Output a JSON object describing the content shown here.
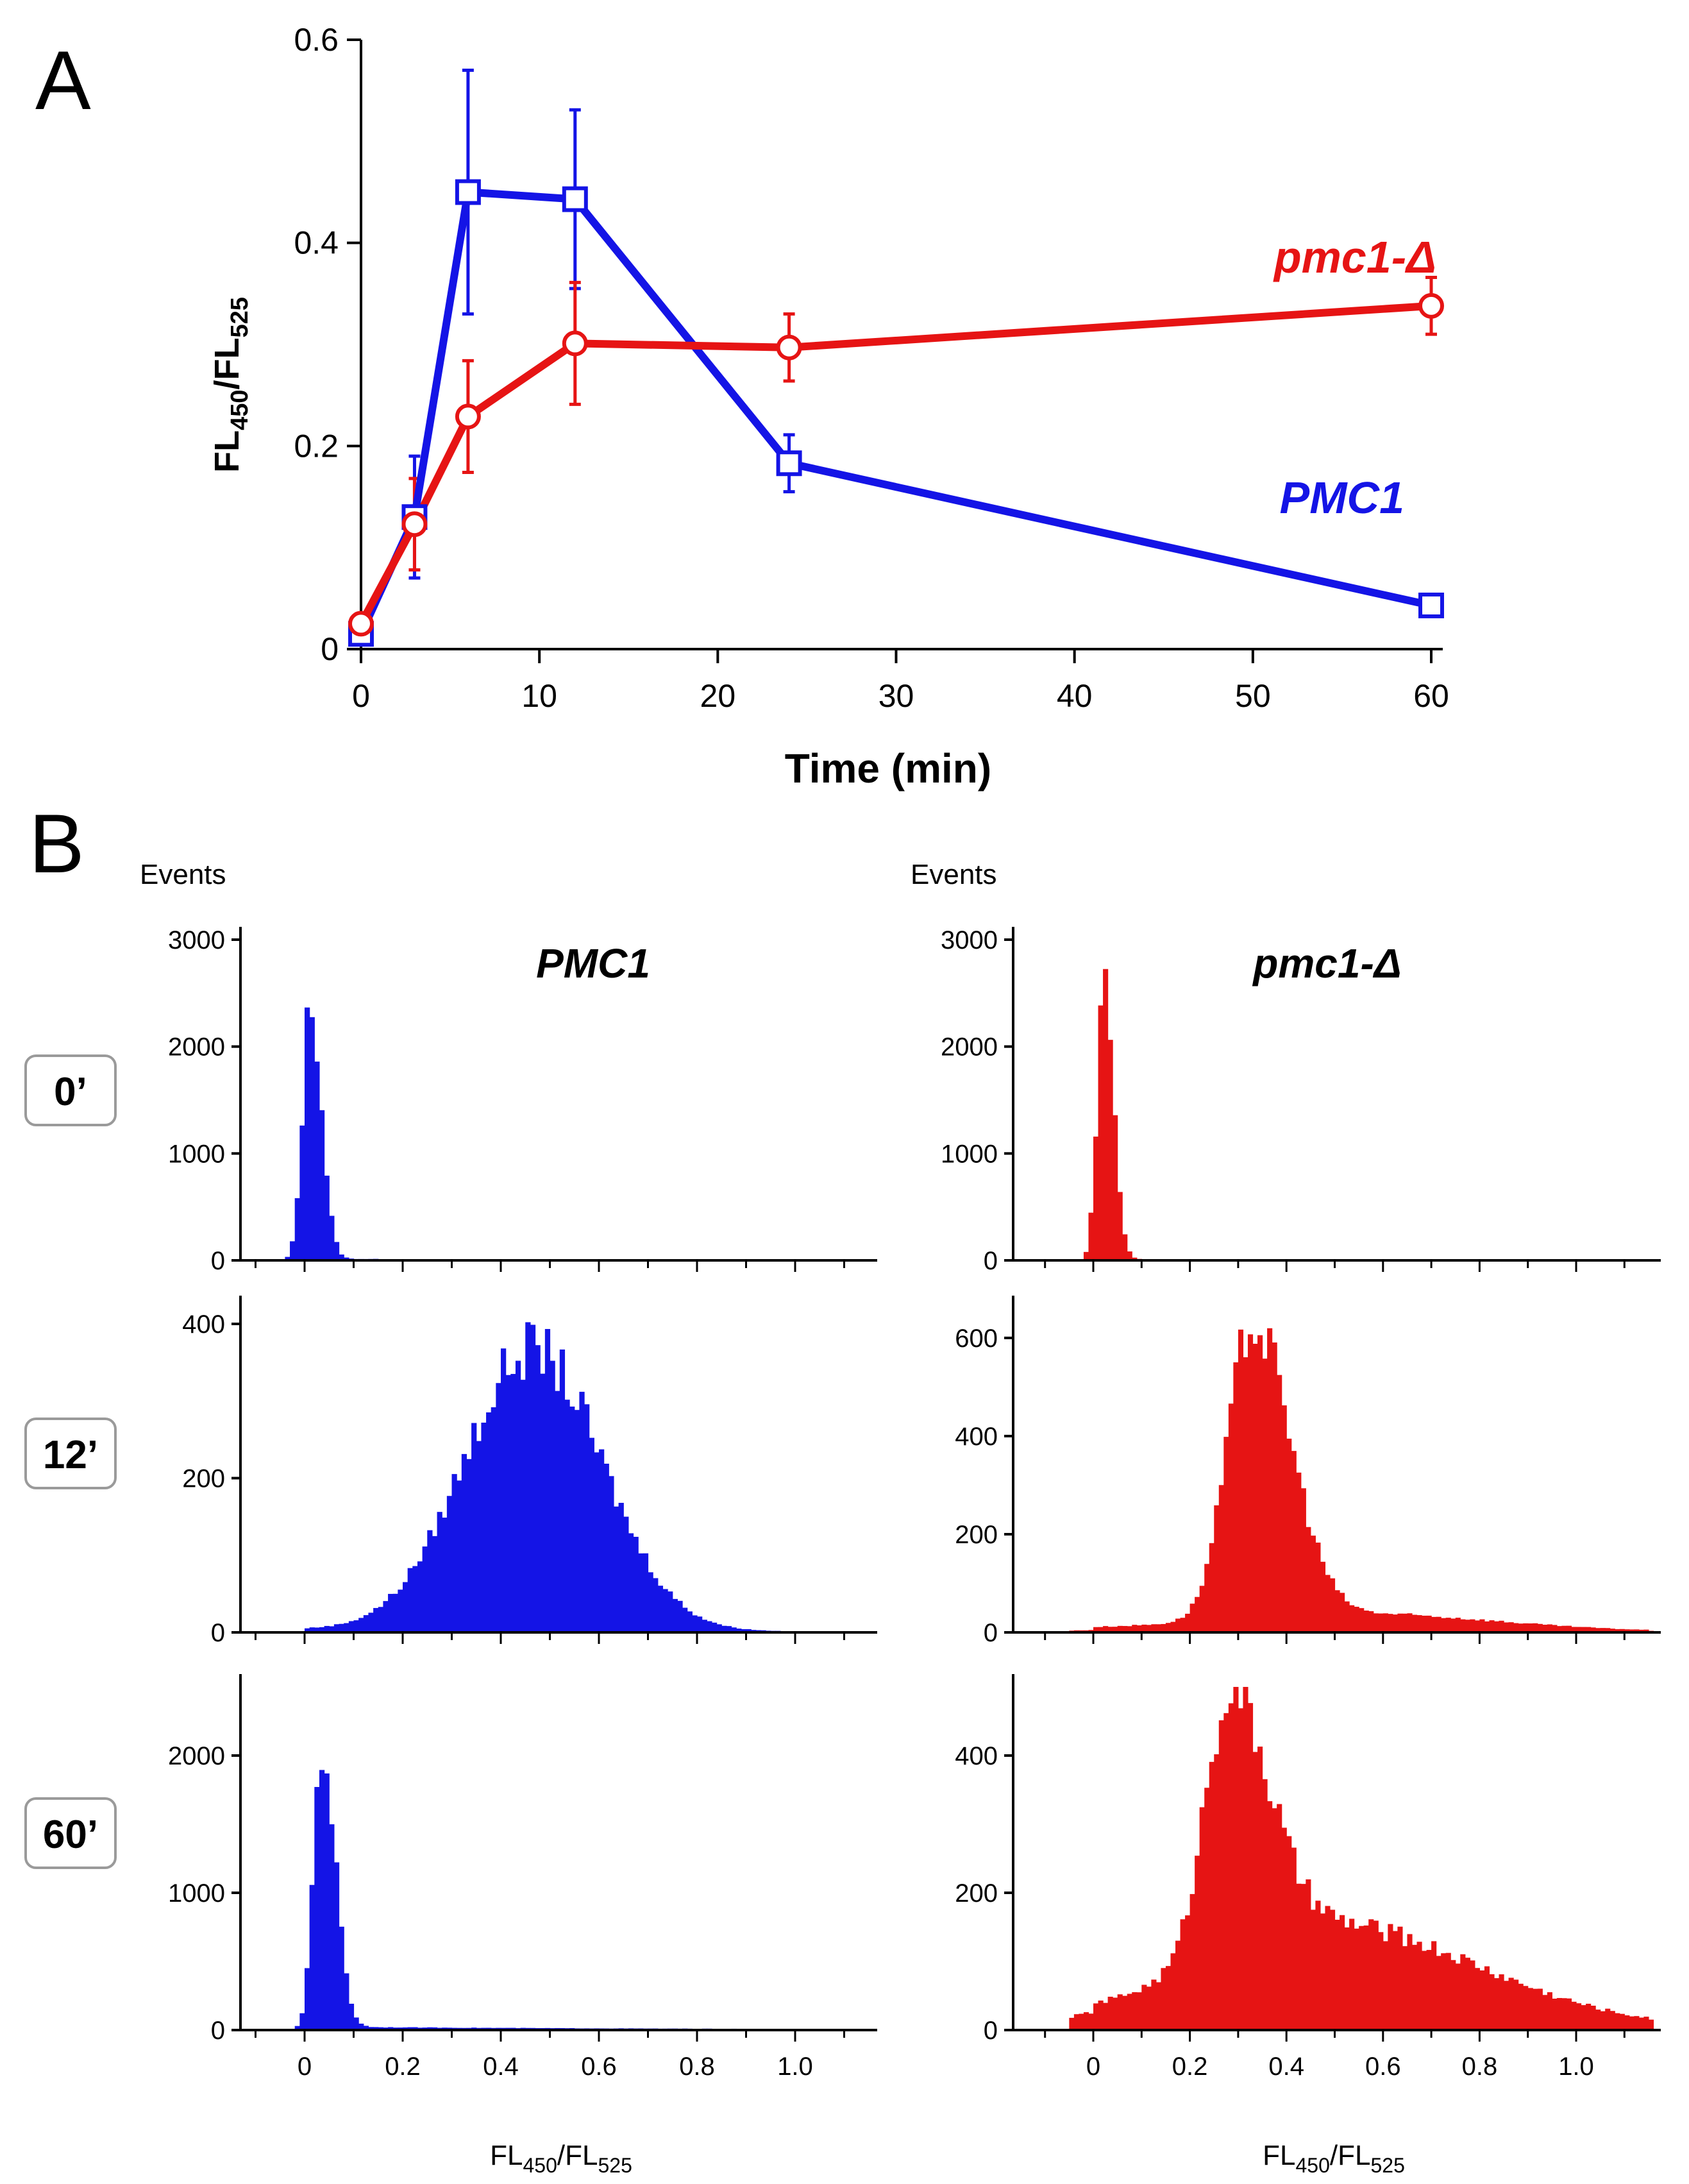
{
  "panel_a": {
    "letter": "A",
    "chart_data": {
      "type": "line",
      "title": "",
      "xlabel": "Time (min)",
      "ylabel": {
        "base": "FL",
        "sub1": "450",
        "sep": "/FL",
        "sub2": "525"
      },
      "xlim": [
        0,
        60
      ],
      "ylim": [
        0,
        0.6
      ],
      "x_ticks": [
        0,
        10,
        20,
        30,
        40,
        50,
        60
      ],
      "x_tick_labels": [
        "0",
        "10",
        "20",
        "30",
        "40",
        "50",
        "60"
      ],
      "y_ticks": [
        0,
        0.2,
        0.4,
        0.6
      ],
      "y_tick_labels": [
        "0",
        "0.2",
        "0.4",
        "0.6"
      ],
      "series": [
        {
          "name": "PMC1",
          "label": "PMC1",
          "color": "#1414e6",
          "marker": "square",
          "x": [
            0,
            3,
            6,
            12,
            24,
            60
          ],
          "y": [
            0.015,
            0.13,
            0.45,
            0.443,
            0.183,
            0.043
          ],
          "err": [
            0.005,
            0.06,
            0.12,
            0.088,
            0.028,
            0.003
          ]
        },
        {
          "name": "pmc1-Δ",
          "label": "pmc1-Δ",
          "color": "#e61414",
          "marker": "circle",
          "x": [
            0,
            3,
            6,
            12,
            24,
            60
          ],
          "y": [
            0.025,
            0.123,
            0.229,
            0.301,
            0.297,
            0.338
          ],
          "err": [
            0.005,
            0.045,
            0.055,
            0.06,
            0.033,
            0.028
          ]
        }
      ]
    }
  },
  "panel_b": {
    "letter": "B",
    "events_label": "Events",
    "x_axis_label": {
      "base": "FL",
      "sub1": "450",
      "sep": "/FL",
      "sub2": "525"
    },
    "x_tick_labels": [
      "0",
      "0.2",
      "0.4",
      "0.6",
      "0.8",
      "1.0"
    ],
    "columns": [
      {
        "title": "PMC1",
        "color": "#1414e6"
      },
      {
        "title": "pmc1-Δ",
        "color": "#e61414"
      }
    ],
    "time_labels": [
      "0’",
      "12’",
      "60’"
    ],
    "chart_data": [
      {
        "type": "histogram",
        "strain": "PMC1",
        "time": "0’",
        "color": "#1414e6",
        "ylim": [
          0,
          3000
        ],
        "y_ticks": [
          0,
          1000,
          2000,
          3000
        ],
        "y_tick_labels": [
          "0",
          "1000",
          "2000",
          "3000"
        ],
        "components": [
          {
            "mean": 0.012,
            "sd": 0.016,
            "peak": 2400,
            "skew": 1.4
          }
        ],
        "tail": {
          "level": 15,
          "end": 0.18
        }
      },
      {
        "type": "histogram",
        "strain": "pmc1-Δ",
        "time": "0’",
        "color": "#e61414",
        "ylim": [
          0,
          3000
        ],
        "y_ticks": [
          0,
          1000,
          2000,
          3000
        ],
        "y_tick_labels": [
          "0",
          "1000",
          "2000",
          "3000"
        ],
        "components": [
          {
            "mean": 0.022,
            "sd": 0.014,
            "peak": 2650,
            "skew": 1.4
          }
        ],
        "tail": {
          "level": 12,
          "end": 0.18
        }
      },
      {
        "type": "histogram",
        "strain": "PMC1",
        "time": "12’",
        "color": "#1414e6",
        "ylim": [
          0,
          420
        ],
        "y_ticks": [
          0,
          200,
          400
        ],
        "y_tick_labels": [
          "0",
          "200",
          "400"
        ],
        "components": [
          {
            "mean": 0.465,
            "sd": 0.14,
            "peak": 365,
            "skew": 1.0
          }
        ],
        "tail": {
          "level": 4,
          "end": 1.15
        }
      },
      {
        "type": "histogram",
        "strain": "pmc1-Δ",
        "time": "12’",
        "color": "#e61414",
        "ylim": [
          0,
          660
        ],
        "y_ticks": [
          0,
          200,
          400,
          600
        ],
        "y_tick_labels": [
          "0",
          "200",
          "400",
          "600"
        ],
        "components": [
          {
            "mean": 0.33,
            "sd": 0.052,
            "peak": 600,
            "skew": 1.5
          },
          {
            "mean": 0.55,
            "sd": 0.28,
            "peak": 35,
            "skew": 1.0
          }
        ],
        "tail": {
          "level": 6,
          "end": 1.15
        }
      },
      {
        "type": "histogram",
        "strain": "PMC1",
        "time": "60’",
        "color": "#1414e6",
        "ylim": [
          0,
          2500
        ],
        "y_ticks": [
          0,
          1000,
          2000
        ],
        "y_tick_labels": [
          "0",
          "1000",
          "2000"
        ],
        "components": [
          {
            "mean": 0.035,
            "sd": 0.017,
            "peak": 2050,
            "skew": 1.6
          }
        ],
        "tail": {
          "level": 25,
          "end": 1.15
        }
      },
      {
        "type": "histogram",
        "strain": "pmc1-Δ",
        "time": "60’",
        "color": "#e61414",
        "ylim": [
          0,
          500
        ],
        "y_ticks": [
          0,
          200,
          400
        ],
        "y_tick_labels": [
          "0",
          "200",
          "400"
        ],
        "components": [
          {
            "mean": 0.28,
            "sd": 0.05,
            "peak": 380,
            "skew": 1.6
          },
          {
            "mean": 0.48,
            "sd": 0.26,
            "peak": 150,
            "skew": 1.2
          }
        ],
        "tail": {
          "level": 10,
          "end": 1.15
        }
      }
    ]
  }
}
